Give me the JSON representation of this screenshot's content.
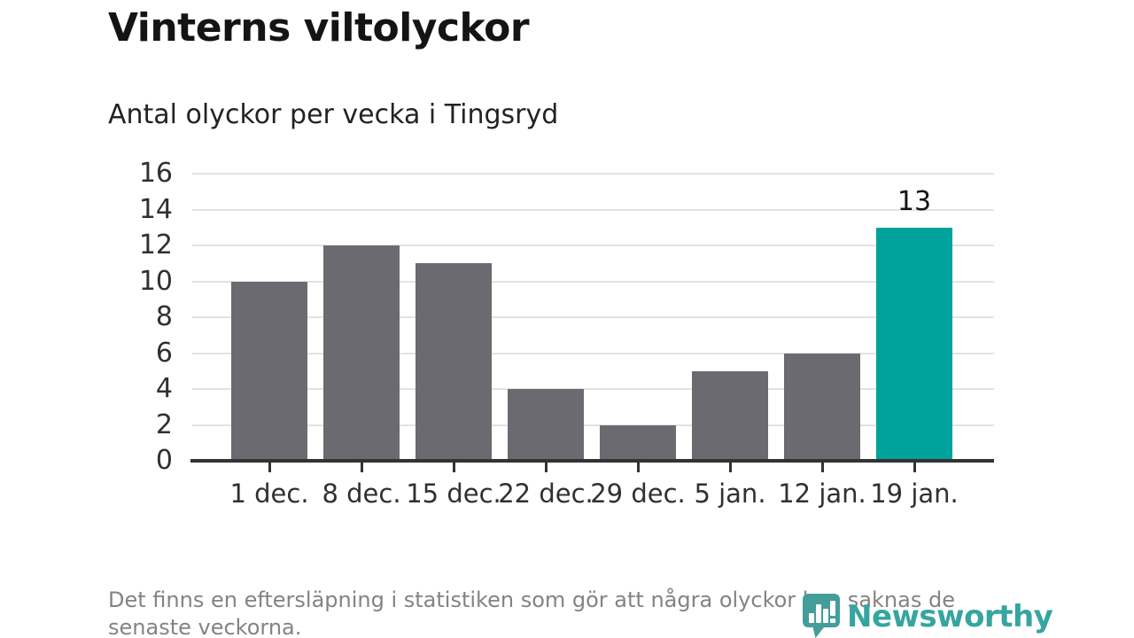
{
  "page": {
    "title": "Vinterns viltolyckor",
    "subtitle": "Antal olyckor per vecka i Tingsryd",
    "footnote": "Det finns en eftersläpning i statistiken som gör att några olyckor kan saknas de senaste veckorna."
  },
  "branding": {
    "logo_text": "Newsworthy",
    "logo_icon": "newsworthy-bar-chart-bubble-icon"
  },
  "colors": {
    "bar": "#6c6a71",
    "bar_highlight": "#00a39b",
    "gridline": "#e3e3e3",
    "axis": "#333333",
    "tick_label": "#303030",
    "footnote_text": "#858380",
    "logo_icon": "#449d99",
    "logo_text": "#36a5a0"
  },
  "chart_data": {
    "type": "bar",
    "title": "Vinterns viltolyckor",
    "subtitle": "Antal olyckor per vecka i Tingsryd",
    "categories": [
      "1 dec.",
      "8 dec.",
      "15 dec.",
      "22 dec.",
      "29 dec.",
      "5 jan.",
      "12 jan.",
      "19 jan."
    ],
    "values": [
      10,
      12,
      11,
      4,
      2,
      5,
      6,
      13
    ],
    "highlight_index": 7,
    "highlight_value_label": "13",
    "xlabel": "",
    "ylabel": "",
    "ylim": [
      0,
      16
    ],
    "yticks": [
      0,
      2,
      4,
      6,
      8,
      10,
      12,
      14,
      16
    ],
    "grid": true,
    "legend": false,
    "footnote": "Det finns en eftersläpning i statistiken som gör att några olyckor kan saknas de senaste veckorna."
  }
}
